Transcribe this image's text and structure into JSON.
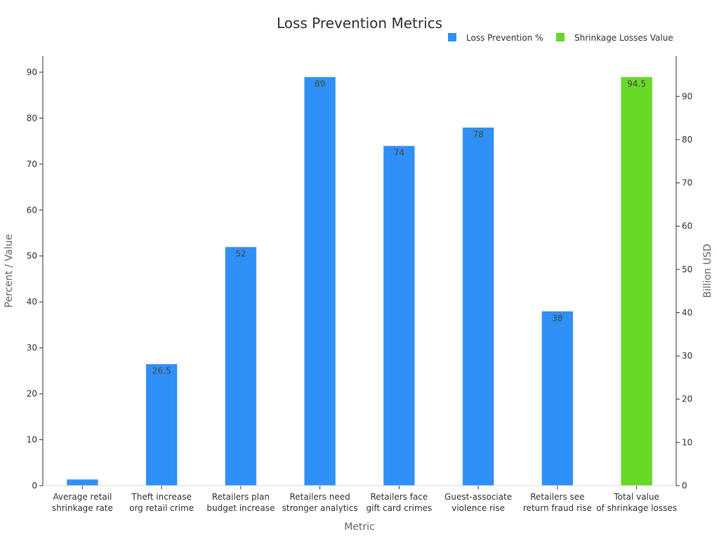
{
  "chart_data": {
    "type": "bar",
    "title": "Loss Prevention Metrics",
    "xlabel": "Metric",
    "ylabel": "Percent / Value",
    "y2label": "Billion USD",
    "categories": [
      [
        "Average retail",
        "shrinkage rate"
      ],
      [
        "Theft increase",
        "org retail crime"
      ],
      [
        "Retailers plan",
        "budget increase"
      ],
      [
        "Retailers need",
        "stronger analytics"
      ],
      [
        "Retailers face",
        "gift card crimes"
      ],
      [
        "Guest-associate",
        "violence rise"
      ],
      [
        "Retailers see",
        "return fraud rise"
      ],
      [
        "Total value",
        "of shrinkage losses"
      ]
    ],
    "series": [
      {
        "name": "Loss Prevention %",
        "color": "#2f90f7",
        "axis": "left",
        "values": [
          1.4,
          26.5,
          52,
          89,
          74,
          78,
          38,
          null
        ],
        "labels": [
          "",
          "26.5",
          "52",
          "89",
          "74",
          "78",
          "38",
          ""
        ]
      },
      {
        "name": "Shrinkage Losses Value",
        "color": "#66d926",
        "axis": "right",
        "values": [
          null,
          null,
          null,
          null,
          null,
          null,
          null,
          94.5
        ],
        "labels": [
          "",
          "",
          "",
          "",
          "",
          "",
          "",
          "94.5"
        ]
      }
    ],
    "ylim": [
      0,
      93.5
    ],
    "y2lim": [
      0,
      99.3
    ],
    "yticks": [
      0,
      10,
      20,
      30,
      40,
      50,
      60,
      70,
      80,
      90
    ],
    "y2ticks": [
      0,
      10,
      20,
      30,
      40,
      50,
      60,
      70,
      80,
      90
    ],
    "legend_position": "top-right",
    "grid": false
  }
}
